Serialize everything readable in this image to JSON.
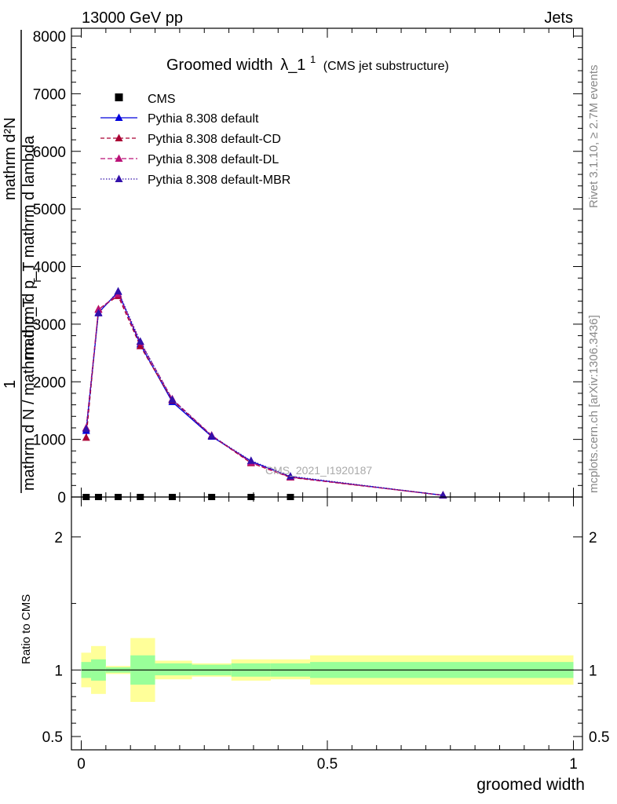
{
  "header": {
    "left_label": "13000 GeV pp",
    "right_label": "Jets",
    "side_label_rivet": "Rivet 3.1.10, ≥ 2.7M events",
    "side_label_site": "mcplots.cern.ch [arXiv:1306.3436]"
  },
  "chart_data": {
    "type": "line",
    "title": "Groomed width",
    "title_symbol": "λ_1",
    "title_sup": "1",
    "subtitle": "(CMS jet substructure)",
    "ylabel_main_numer": "mathrm d²N",
    "ylabel_main_denom": "mathrm d p_T mathrm d lambda",
    "ylabel_main_sub": "T",
    "ylabel_prefix_numer": "1",
    "ylabel_prefix_denom": "mathrm d N / mathrm d p_T",
    "ratio_ylabel": "Ratio to CMS",
    "xlabel": "groomed width",
    "watermark": "CMS_2021_I1920187",
    "xlim": [
      0,
      1
    ],
    "ylim": [
      0,
      8000
    ],
    "ratio_ylim": [
      0.4,
      2.3
    ],
    "y_ticks": [
      0,
      1000,
      2000,
      3000,
      4000,
      5000,
      6000,
      7000,
      8000
    ],
    "y_tick_labels": [
      "0",
      "1000",
      "2000",
      "3000",
      "4000",
      "5000",
      "6000",
      "7000",
      "8000"
    ],
    "x_ticks": [
      0,
      0.5,
      1
    ],
    "x_tick_labels": [
      "0",
      "0.5",
      "1"
    ],
    "ratio_ticks": [
      0.5,
      1,
      2
    ],
    "ratio_tick_labels": [
      "0.5",
      "1",
      "2"
    ],
    "data": {
      "name": "CMS",
      "x": [
        0.01,
        0.035,
        0.075,
        0.12,
        0.185,
        0.265,
        0.345,
        0.425
      ],
      "y": [
        0,
        0,
        0,
        0,
        0,
        0,
        0,
        0
      ]
    },
    "series": [
      {
        "name": "Pythia 8.308 default",
        "color": "#0000dd",
        "dash": "",
        "marker": "triangle",
        "x": [
          0.01,
          0.035,
          0.075,
          0.12,
          0.185,
          0.265,
          0.345,
          0.425,
          0.735
        ],
        "y": [
          1150,
          3200,
          3560,
          2650,
          1650,
          1050,
          620,
          350,
          30
        ]
      },
      {
        "name": "Pythia 8.308 default-CD",
        "color": "#aa0033",
        "dash": "5,3",
        "marker": "triangle",
        "x": [
          0.01,
          0.035,
          0.075,
          0.12,
          0.185,
          0.265,
          0.345,
          0.425,
          0.735
        ],
        "y": [
          1030,
          3260,
          3490,
          2620,
          1680,
          1060,
          590,
          340,
          30
        ]
      },
      {
        "name": "Pythia 8.308 default-DL",
        "color": "#bb1177",
        "dash": "6,3",
        "marker": "triangle",
        "x": [
          0.01,
          0.035,
          0.075,
          0.12,
          0.185,
          0.265,
          0.345,
          0.425,
          0.735
        ],
        "y": [
          1200,
          3250,
          3520,
          2690,
          1700,
          1070,
          600,
          345,
          30
        ]
      },
      {
        "name": "Pythia 8.308 default-MBR",
        "color": "#3311aa",
        "dash": "1.5,2",
        "marker": "triangle",
        "x": [
          0.01,
          0.035,
          0.075,
          0.12,
          0.185,
          0.265,
          0.345,
          0.425,
          0.735
        ],
        "y": [
          1180,
          3190,
          3570,
          2700,
          1690,
          1060,
          630,
          360,
          30
        ]
      }
    ],
    "ratio_bands": {
      "bins": [
        [
          0.0,
          0.02
        ],
        [
          0.02,
          0.05
        ],
        [
          0.05,
          0.1
        ],
        [
          0.1,
          0.15
        ],
        [
          0.15,
          0.225
        ],
        [
          0.225,
          0.305
        ],
        [
          0.305,
          0.385
        ],
        [
          0.385,
          0.465
        ],
        [
          0.465,
          1.0
        ]
      ],
      "inner_lo": [
        0.94,
        0.92,
        0.98,
        0.89,
        0.96,
        0.96,
        0.95,
        0.95,
        0.94
      ],
      "inner_hi": [
        1.06,
        1.08,
        1.02,
        1.11,
        1.05,
        1.04,
        1.05,
        1.05,
        1.06
      ],
      "outer_lo": [
        0.87,
        0.82,
        0.97,
        0.76,
        0.93,
        0.95,
        0.92,
        0.93,
        0.89
      ],
      "outer_hi": [
        1.13,
        1.18,
        1.03,
        1.24,
        1.07,
        1.05,
        1.08,
        1.08,
        1.11
      ],
      "inner_color": "#99ff99",
      "outer_color": "#ffff99"
    }
  }
}
